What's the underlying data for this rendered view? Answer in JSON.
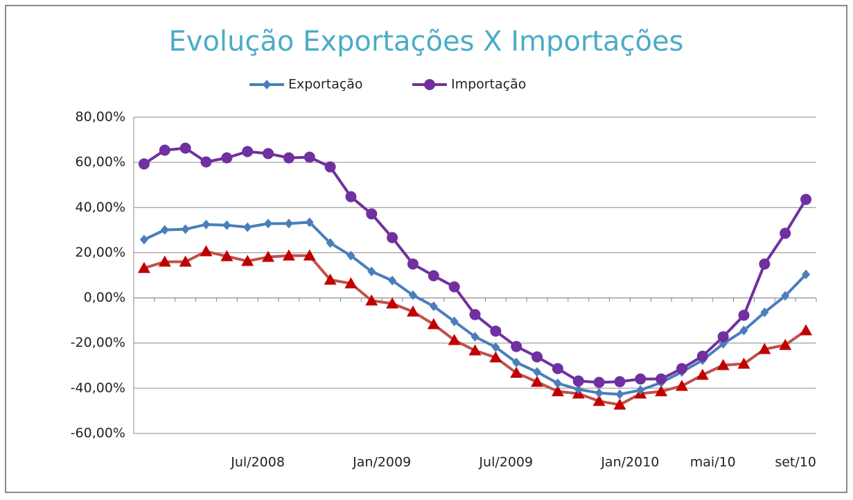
{
  "chart_data": {
    "type": "line",
    "title": "Evolução Exportações X Importações",
    "categories": [
      null,
      null,
      null,
      null,
      null,
      null,
      "Jul/2008",
      null,
      null,
      null,
      null,
      null,
      "Jan/2009",
      null,
      null,
      null,
      null,
      null,
      "Jul/2009",
      null,
      null,
      null,
      null,
      null,
      "Jan/2010",
      null,
      null,
      null,
      "mai/10",
      null,
      null,
      null,
      "set/10"
    ],
    "series": [
      {
        "name": "Exportação",
        "color": "#4a7ebb",
        "marker": "diamond",
        "values": [
          25.8,
          30.1,
          30.4,
          32.5,
          32.2,
          31.3,
          32.9,
          32.9,
          33.5,
          24.3,
          18.7,
          11.7,
          7.7,
          1.2,
          -3.7,
          -10.4,
          -17.2,
          -21.8,
          -28.6,
          -32.8,
          -37.8,
          -40.5,
          -42.1,
          -42.7,
          -40.8,
          -37.5,
          -32.8,
          -27.6,
          -20.3,
          -14.4,
          -6.4,
          0.9,
          10.4
        ]
      },
      {
        "name": "Importação",
        "color": "#7030a0",
        "marker": "circle",
        "values": [
          59.3,
          65.4,
          66.3,
          60.2,
          62.0,
          64.8,
          63.9,
          62.0,
          62.3,
          58.0,
          44.8,
          37.2,
          26.7,
          15.0,
          9.8,
          4.9,
          -7.4,
          -14.7,
          -21.5,
          -26.1,
          -31.3,
          -36.8,
          -37.4,
          -37.1,
          -35.9,
          -35.9,
          -31.3,
          -25.8,
          -17.2,
          -7.7,
          15.0,
          28.6,
          43.6
        ]
      },
      {
        "color": "#c0504d",
        "marker_color": "#c00000",
        "marker": "triangle",
        "values": [
          13.2,
          16.0,
          16.0,
          20.6,
          18.4,
          16.3,
          18.1,
          18.7,
          18.7,
          8.0,
          6.4,
          -1.2,
          -2.5,
          -6.1,
          -11.7,
          -18.7,
          -23.3,
          -26.4,
          -33.2,
          -37.2,
          -41.4,
          -42.4,
          -45.7,
          -47.3,
          -42.4,
          -41.4,
          -39.0,
          -34.1,
          -29.8,
          -29.2,
          -22.7,
          -20.9,
          -14.4
        ]
      }
    ],
    "ylim": [
      -60,
      80
    ],
    "yticks": [
      {
        "value": -60,
        "label": "-60,00%"
      },
      {
        "value": -40,
        "label": "-40,00%"
      },
      {
        "value": -20,
        "label": "-20,00%"
      },
      {
        "value": 0,
        "label": "0,00%"
      },
      {
        "value": 20,
        "label": "20,00%"
      },
      {
        "value": 40,
        "label": "40,00%"
      },
      {
        "value": 60,
        "label": "60,00%"
      },
      {
        "value": 80,
        "label": "80,00%"
      }
    ],
    "grid": true
  }
}
